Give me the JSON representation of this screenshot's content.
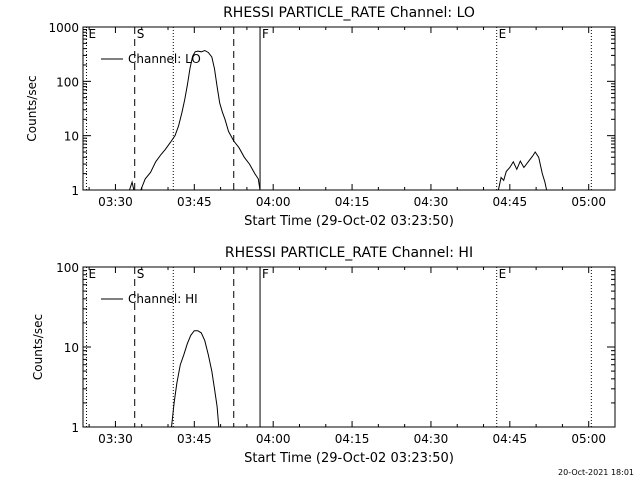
{
  "footer": {
    "timestamp": "20-Oct-2021 18:01"
  },
  "chart_data": [
    {
      "type": "line",
      "title": "RHESSI PARTICLE_RATE Channel: LO",
      "xlabel": "Start Time (29-Oct-02 03:23:50)",
      "ylabel": "Counts/sec",
      "xlim": [
        "03:23:50",
        "05:05:00"
      ],
      "ylim": [
        1,
        1000
      ],
      "yscale": "log",
      "x_ticks": [
        "03:30",
        "03:45",
        "04:00",
        "04:15",
        "04:30",
        "04:45",
        "05:00"
      ],
      "y_ticks": [
        "1",
        "10",
        "100",
        "1000"
      ],
      "legend": {
        "position": "top-left",
        "entries": [
          "Channel: LO"
        ]
      },
      "markers": [
        {
          "label": "E",
          "time": "03:24:30",
          "style": "dotted"
        },
        {
          "label": "S",
          "time": "03:33:40",
          "style": "dashed"
        },
        {
          "label": "",
          "time": "03:41:00",
          "style": "dotted"
        },
        {
          "label": "",
          "time": "03:52:30",
          "style": "dashed"
        },
        {
          "label": "F",
          "time": "03:57:30",
          "style": "solid"
        },
        {
          "label": "E",
          "time": "04:42:30",
          "style": "dotted"
        },
        {
          "label": "",
          "time": "05:00:30",
          "style": "dotted"
        }
      ],
      "series": [
        {
          "name": "Channel: LO",
          "segments": [
            [
              [
                "03:32:40",
                1
              ],
              [
                "03:33:10",
                1.4
              ],
              [
                "03:33:30",
                1
              ]
            ],
            [
              [
                "03:34:50",
                1
              ],
              [
                "03:35:40",
                1.6
              ],
              [
                "03:36:40",
                2.1
              ],
              [
                "03:37:40",
                3.3
              ],
              [
                "03:38:40",
                4.5
              ],
              [
                "03:39:30",
                5.6
              ],
              [
                "03:40:30",
                7.6
              ],
              [
                "03:41:20",
                10
              ],
              [
                "03:42:00",
                15
              ],
              [
                "03:42:40",
                27
              ],
              [
                "03:43:10",
                46
              ],
              [
                "03:43:40",
                84
              ],
              [
                "03:44:10",
                170
              ],
              [
                "03:44:40",
                290
              ],
              [
                "03:45:10",
                350
              ],
              [
                "03:45:40",
                360
              ],
              [
                "03:46:20",
                350
              ],
              [
                "03:47:00",
                370
              ],
              [
                "03:47:40",
                340
              ],
              [
                "03:48:20",
                280
              ],
              [
                "03:48:50",
                170
              ],
              [
                "03:49:20",
                80
              ],
              [
                "03:49:50",
                40
              ],
              [
                "03:50:20",
                27
              ],
              [
                "03:50:50",
                20
              ],
              [
                "03:51:30",
                12
              ],
              [
                "03:52:30",
                8
              ],
              [
                "03:53:30",
                6
              ],
              [
                "03:54:30",
                4
              ],
              [
                "03:55:30",
                3
              ],
              [
                "03:56:30",
                2
              ],
              [
                "03:57:10",
                1.6
              ],
              [
                "03:57:30",
                1
              ]
            ],
            [
              [
                "04:42:50",
                1
              ],
              [
                "04:43:20",
                1.7
              ],
              [
                "04:43:50",
                1.5
              ],
              [
                "04:44:20",
                2.2
              ],
              [
                "04:45:00",
                2.6
              ],
              [
                "04:45:40",
                3.3
              ],
              [
                "04:46:20",
                2.4
              ],
              [
                "04:47:00",
                3.4
              ],
              [
                "04:47:40",
                2.6
              ],
              [
                "04:48:30",
                3.3
              ],
              [
                "04:49:20",
                4.2
              ],
              [
                "04:49:50",
                5
              ],
              [
                "04:50:30",
                4
              ],
              [
                "04:51:10",
                2
              ],
              [
                "04:51:40",
                1.4
              ],
              [
                "04:52:00",
                1
              ]
            ]
          ]
        }
      ]
    },
    {
      "type": "line",
      "title": "RHESSI PARTICLE_RATE Channel: HI",
      "xlabel": "Start Time (29-Oct-02 03:23:50)",
      "ylabel": "Counts/sec",
      "xlim": [
        "03:23:50",
        "05:05:00"
      ],
      "ylim": [
        1,
        100
      ],
      "yscale": "log",
      "x_ticks": [
        "03:30",
        "03:45",
        "04:00",
        "04:15",
        "04:30",
        "04:45",
        "05:00"
      ],
      "y_ticks": [
        "1",
        "10",
        "100"
      ],
      "legend": {
        "position": "top-left",
        "entries": [
          "Channel: HI"
        ]
      },
      "markers": [
        {
          "label": "E",
          "time": "03:24:30",
          "style": "dotted"
        },
        {
          "label": "S",
          "time": "03:33:40",
          "style": "dashed"
        },
        {
          "label": "",
          "time": "03:41:00",
          "style": "dotted"
        },
        {
          "label": "",
          "time": "03:52:30",
          "style": "dashed"
        },
        {
          "label": "F",
          "time": "03:57:30",
          "style": "solid"
        },
        {
          "label": "E",
          "time": "04:42:30",
          "style": "dotted"
        },
        {
          "label": "",
          "time": "05:00:30",
          "style": "dotted"
        }
      ],
      "series": [
        {
          "name": "Channel: HI",
          "segments": [
            [
              [
                "03:40:40",
                1
              ],
              [
                "03:41:10",
                2
              ],
              [
                "03:41:40",
                3.5
              ],
              [
                "03:42:20",
                6
              ],
              [
                "03:43:00",
                8
              ],
              [
                "03:43:40",
                11
              ],
              [
                "03:44:20",
                14
              ],
              [
                "03:45:00",
                16
              ],
              [
                "03:45:40",
                16
              ],
              [
                "03:46:20",
                15
              ],
              [
                "03:47:00",
                12
              ],
              [
                "03:47:40",
                8
              ],
              [
                "03:48:20",
                5
              ],
              [
                "03:48:50",
                3
              ],
              [
                "03:49:20",
                1.8
              ],
              [
                "03:49:40",
                1
              ]
            ]
          ]
        }
      ]
    }
  ]
}
